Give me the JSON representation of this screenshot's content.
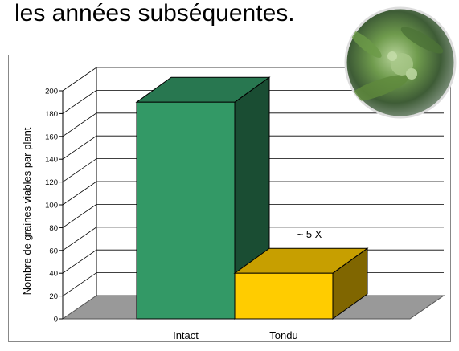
{
  "header_text": "les années subséquentes.",
  "chart_data": {
    "type": "bar3d",
    "ylabel": "Nombre de graines viables par plant",
    "categories": [
      "Intact",
      "Tondu"
    ],
    "values": [
      190,
      40
    ],
    "colors": [
      "#339966",
      "#ffcc00"
    ],
    "annotation": "~ 5 X",
    "ylim": [
      0,
      200
    ],
    "yticks": [
      0,
      20,
      40,
      60,
      80,
      100,
      120,
      140,
      160,
      180,
      200
    ],
    "grid": true
  }
}
